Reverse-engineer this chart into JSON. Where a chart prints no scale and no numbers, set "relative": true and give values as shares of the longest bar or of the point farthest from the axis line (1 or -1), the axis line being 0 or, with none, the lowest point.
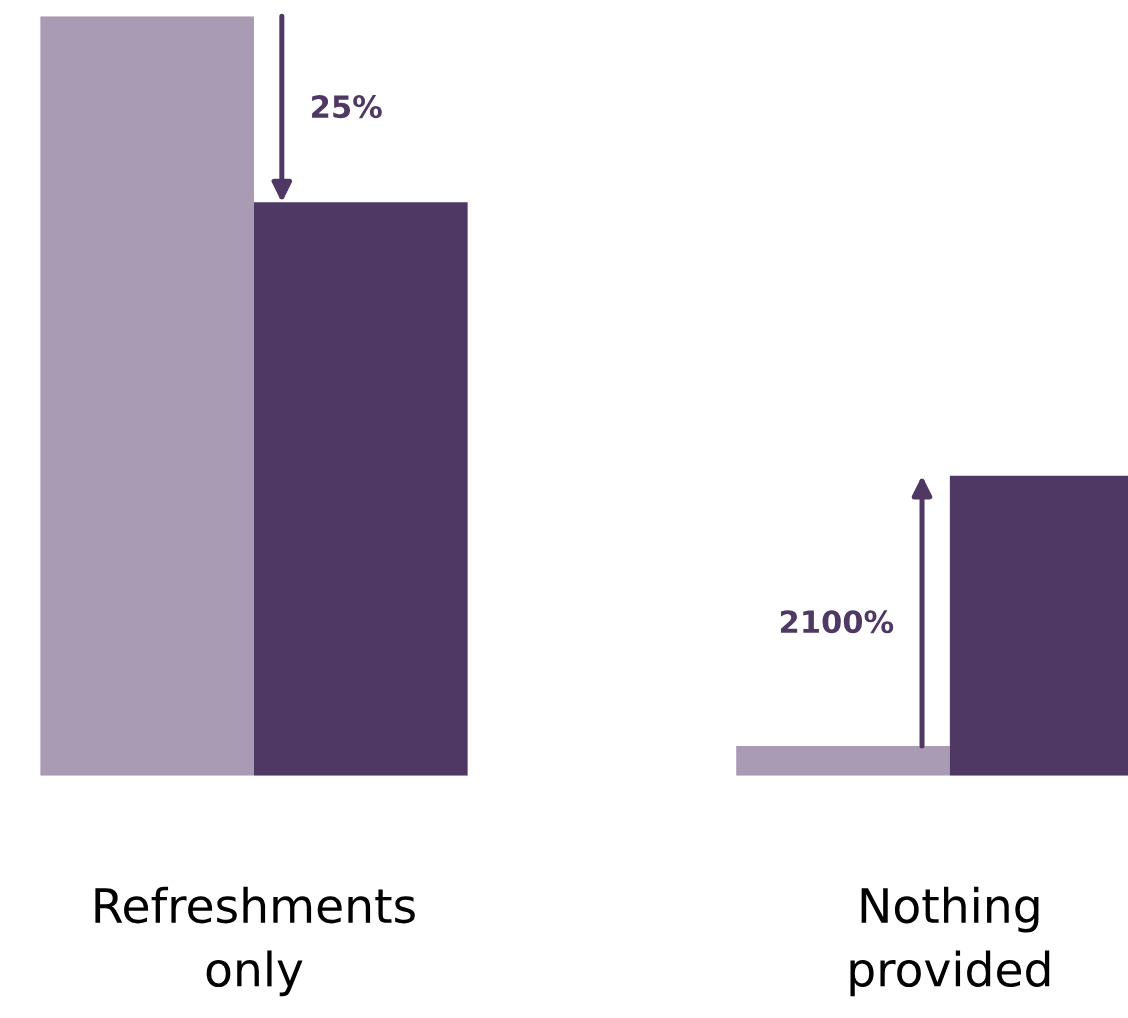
{
  "chart_data": {
    "type": "bar",
    "relative": true,
    "categories": [
      "Refreshments\nonly",
      "Nothing\nprovided"
    ],
    "series": [
      {
        "color": "#a89bb3",
        "values": [
          1,
          0.039
        ]
      },
      {
        "color": "#4f3864",
        "values": [
          0.755,
          0.395
        ]
      }
    ],
    "annotations": [
      "25%",
      "2100%"
    ]
  }
}
